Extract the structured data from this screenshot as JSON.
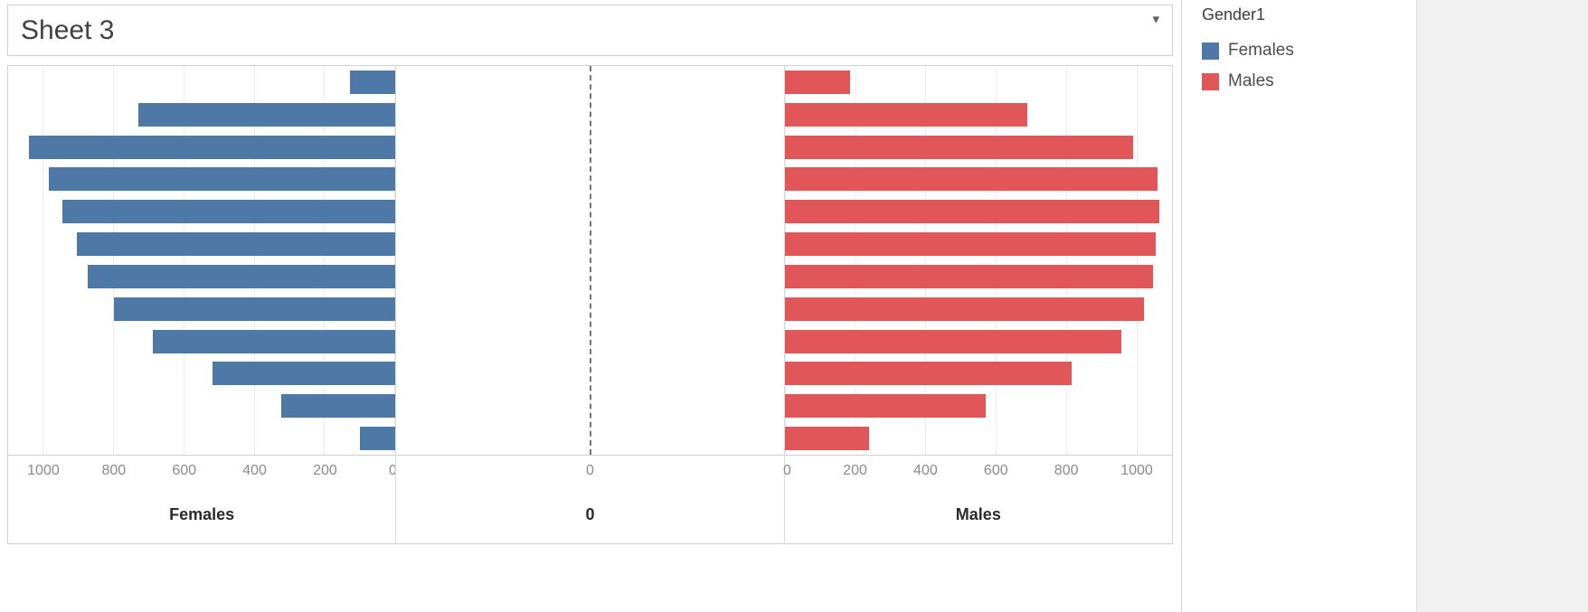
{
  "title": "Sheet 3",
  "icons": {
    "dropdown_caret": "▾"
  },
  "legend": {
    "title": "Gender1",
    "items": [
      {
        "label": "Females",
        "color": "#4e79a7"
      },
      {
        "label": "Males",
        "color": "#e15759"
      }
    ]
  },
  "chart_data": {
    "type": "bar",
    "subtype": "population_pyramid",
    "orientation": "horizontal",
    "grid": true,
    "row_count": 12,
    "axis_range": [
      0,
      1100
    ],
    "middle_axis": {
      "tick_label": "0",
      "title": "0",
      "zero_line_style": "dashed"
    },
    "series": [
      {
        "name": "Females",
        "color": "#4e79a7",
        "direction": "right-to-left",
        "axis_title": "Females",
        "axis_ticks": [
          1000,
          800,
          600,
          400,
          200,
          0
        ],
        "values": [
          130,
          730,
          1040,
          985,
          945,
          905,
          875,
          800,
          690,
          520,
          325,
          100
        ]
      },
      {
        "name": "Males",
        "color": "#e15759",
        "direction": "left-to-right",
        "axis_title": "Males",
        "axis_ticks": [
          0,
          200,
          400,
          600,
          800,
          1000
        ],
        "values": [
          185,
          690,
          990,
          1060,
          1065,
          1055,
          1045,
          1020,
          955,
          815,
          570,
          240
        ]
      }
    ]
  }
}
